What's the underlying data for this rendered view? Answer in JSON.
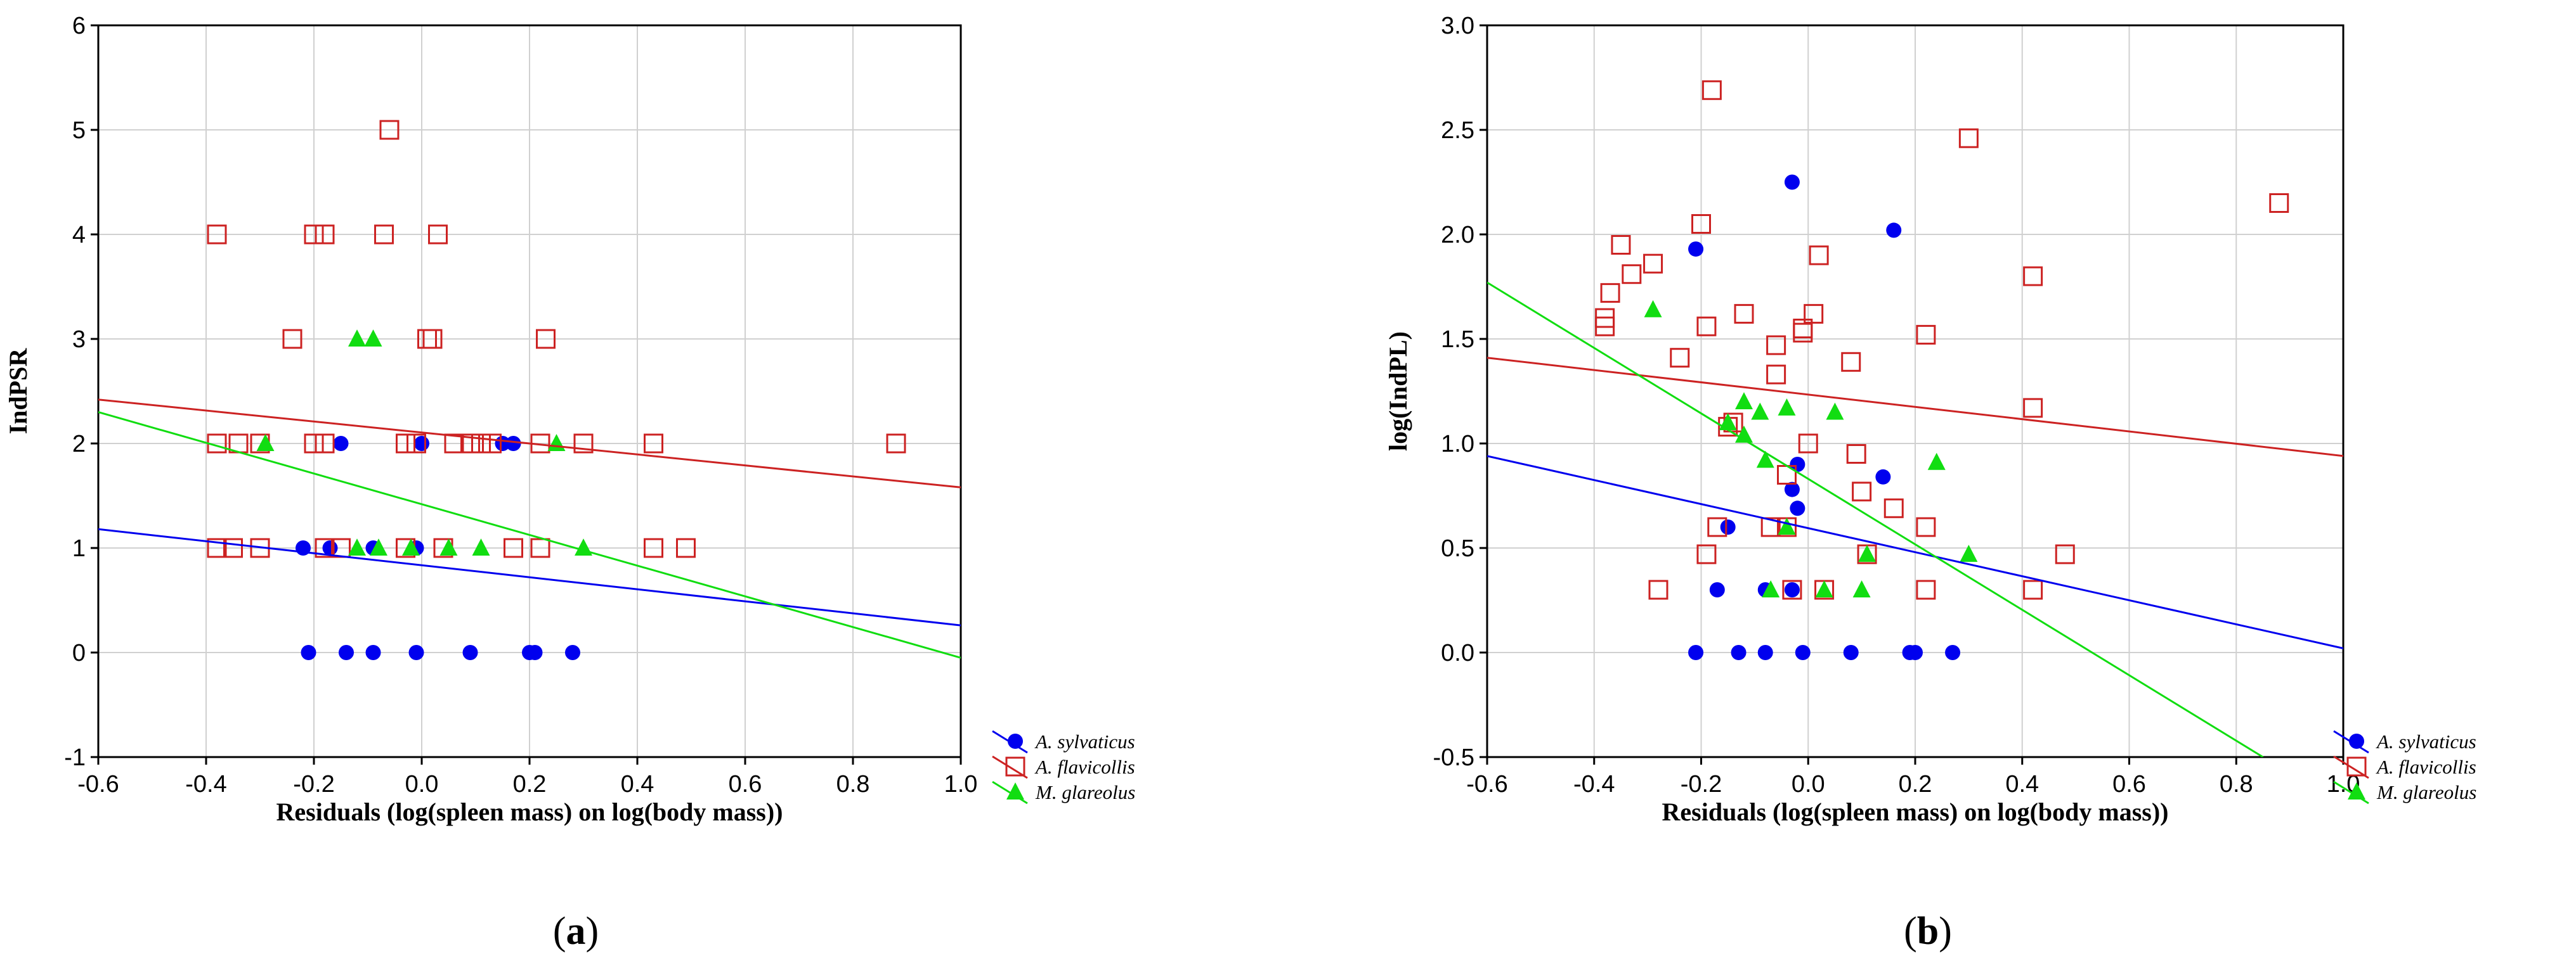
{
  "figure": {
    "panel_labels": [
      "a",
      "b"
    ]
  },
  "chart_data": [
    {
      "type": "scatter",
      "panel": "a",
      "xlabel": "Residuals (log(spleen mass) on log(body mass))",
      "ylabel": "IndPSR",
      "xlim": [
        -0.6,
        1.0
      ],
      "ylim": [
        -1,
        6
      ],
      "xticks": [
        "-0.6",
        "-0.4",
        "-0.2",
        "0.0",
        "0.2",
        "0.4",
        "0.6",
        "0.8",
        "1.0"
      ],
      "yticks": [
        "-1",
        "0",
        "1",
        "2",
        "3",
        "4",
        "5",
        "6"
      ],
      "grid": true,
      "legend_position": "bottom-right-outside",
      "series": [
        {
          "name": "A. sylvaticus",
          "marker": "filled-circle",
          "color": "#0000ee",
          "points": [
            [
              -0.21,
              0
            ],
            [
              -0.14,
              0
            ],
            [
              -0.09,
              0
            ],
            [
              -0.01,
              0
            ],
            [
              0.09,
              0
            ],
            [
              0.2,
              0
            ],
            [
              0.21,
              0
            ],
            [
              0.28,
              0
            ],
            [
              -0.22,
              1
            ],
            [
              -0.17,
              1
            ],
            [
              -0.09,
              1
            ],
            [
              -0.01,
              1
            ],
            [
              -0.15,
              2
            ],
            [
              0.0,
              2
            ],
            [
              0.15,
              2
            ],
            [
              0.17,
              2
            ]
          ],
          "fit": [
            [
              -0.6,
              1.18
            ],
            [
              1.0,
              0.26
            ]
          ]
        },
        {
          "name": "A. flavicollis",
          "marker": "open-square",
          "color": "#cc2222",
          "points": [
            [
              -0.38,
              1
            ],
            [
              -0.35,
              1
            ],
            [
              -0.3,
              1
            ],
            [
              -0.18,
              1
            ],
            [
              -0.15,
              1
            ],
            [
              -0.03,
              1
            ],
            [
              0.04,
              1
            ],
            [
              0.17,
              1
            ],
            [
              0.22,
              1
            ],
            [
              0.43,
              1
            ],
            [
              0.49,
              1
            ],
            [
              -0.38,
              2
            ],
            [
              -0.34,
              2
            ],
            [
              -0.3,
              2
            ],
            [
              -0.2,
              2
            ],
            [
              -0.18,
              2
            ],
            [
              -0.03,
              2
            ],
            [
              -0.01,
              2
            ],
            [
              0.06,
              2
            ],
            [
              0.09,
              2
            ],
            [
              0.11,
              2
            ],
            [
              0.13,
              2
            ],
            [
              0.22,
              2
            ],
            [
              0.3,
              2
            ],
            [
              0.43,
              2
            ],
            [
              0.88,
              2
            ],
            [
              -0.24,
              3
            ],
            [
              0.01,
              3
            ],
            [
              0.02,
              3
            ],
            [
              0.23,
              3
            ],
            [
              -0.38,
              4
            ],
            [
              -0.2,
              4
            ],
            [
              -0.18,
              4
            ],
            [
              -0.07,
              4
            ],
            [
              0.03,
              4
            ],
            [
              -0.06,
              5
            ]
          ],
          "fit": [
            [
              -0.6,
              2.42
            ],
            [
              1.0,
              1.58
            ]
          ]
        },
        {
          "name": "M. glareolus",
          "marker": "filled-triangle",
          "color": "#11dd11",
          "points": [
            [
              -0.12,
              3
            ],
            [
              -0.09,
              3
            ],
            [
              -0.29,
              2
            ],
            [
              0.25,
              2
            ],
            [
              -0.12,
              1
            ],
            [
              -0.08,
              1
            ],
            [
              -0.02,
              1
            ],
            [
              0.05,
              1
            ],
            [
              0.11,
              1
            ],
            [
              0.3,
              1
            ]
          ],
          "fit": [
            [
              -0.6,
              2.3
            ],
            [
              1.0,
              -0.05
            ]
          ]
        }
      ]
    },
    {
      "type": "scatter",
      "panel": "b",
      "xlabel": "Residuals (log(spleen mass) on log(body mass))",
      "ylabel": "log(IndPL)",
      "xlim": [
        -0.6,
        1.0
      ],
      "ylim": [
        -0.5,
        3.0
      ],
      "xticks": [
        "-0.6",
        "-0.4",
        "-0.2",
        "0.0",
        "0.2",
        "0.4",
        "0.6",
        "0.8",
        "1.0"
      ],
      "yticks": [
        "-0.5",
        "0.0",
        "0.5",
        "1.0",
        "1.5",
        "2.0",
        "2.5",
        "3.0"
      ],
      "grid": true,
      "legend_position": "bottom-right-outside",
      "series": [
        {
          "name": "A. sylvaticus",
          "marker": "filled-circle",
          "color": "#0000ee",
          "points": [
            [
              -0.21,
              1.93
            ],
            [
              -0.03,
              2.25
            ],
            [
              0.16,
              2.02
            ],
            [
              -0.02,
              0.9
            ],
            [
              0.14,
              0.84
            ],
            [
              -0.03,
              0.78
            ],
            [
              -0.02,
              0.69
            ],
            [
              -0.15,
              0.6
            ],
            [
              -0.17,
              0.3
            ],
            [
              -0.08,
              0.3
            ],
            [
              -0.03,
              0.3
            ],
            [
              -0.21,
              0
            ],
            [
              -0.13,
              0
            ],
            [
              -0.08,
              0
            ],
            [
              -0.01,
              0
            ],
            [
              0.08,
              0
            ],
            [
              0.19,
              0
            ],
            [
              0.2,
              0
            ],
            [
              0.27,
              0
            ]
          ],
          "fit": [
            [
              -0.6,
              0.94
            ],
            [
              1.0,
              0.02
            ]
          ]
        },
        {
          "name": "A. flavicollis",
          "marker": "open-square",
          "color": "#cc2222",
          "points": [
            [
              -0.18,
              2.69
            ],
            [
              0.3,
              2.46
            ],
            [
              0.88,
              2.15
            ],
            [
              -0.2,
              2.05
            ],
            [
              -0.35,
              1.95
            ],
            [
              -0.29,
              1.86
            ],
            [
              -0.33,
              1.81
            ],
            [
              0.42,
              1.8
            ],
            [
              -0.37,
              1.72
            ],
            [
              -0.12,
              1.62
            ],
            [
              0.01,
              1.62
            ],
            [
              -0.38,
              1.56
            ],
            [
              -0.38,
              1.6
            ],
            [
              -0.19,
              1.56
            ],
            [
              -0.01,
              1.55
            ],
            [
              -0.01,
              1.53
            ],
            [
              0.22,
              1.52
            ],
            [
              -0.06,
              1.47
            ],
            [
              -0.24,
              1.41
            ],
            [
              0.08,
              1.39
            ],
            [
              -0.06,
              1.33
            ],
            [
              0.42,
              1.17
            ],
            [
              -0.14,
              1.1
            ],
            [
              -0.15,
              1.08
            ],
            [
              0.0,
              1.0
            ],
            [
              0.09,
              0.95
            ],
            [
              -0.04,
              0.85
            ],
            [
              0.1,
              0.77
            ],
            [
              0.16,
              0.69
            ],
            [
              -0.17,
              0.6
            ],
            [
              -0.07,
              0.6
            ],
            [
              -0.04,
              0.6
            ],
            [
              0.22,
              0.6
            ],
            [
              0.11,
              0.47
            ],
            [
              0.48,
              0.47
            ],
            [
              -0.19,
              0.47
            ],
            [
              -0.28,
              0.3
            ],
            [
              -0.03,
              0.3
            ],
            [
              0.03,
              0.3
            ],
            [
              0.22,
              0.3
            ],
            [
              0.42,
              0.3
            ],
            [
              0.02,
              1.9
            ]
          ],
          "fit": [
            [
              -0.6,
              1.41
            ],
            [
              1.0,
              0.94
            ]
          ]
        },
        {
          "name": "M. glareolus",
          "marker": "filled-triangle",
          "color": "#11dd11",
          "points": [
            [
              -0.29,
              1.64
            ],
            [
              -0.12,
              1.2
            ],
            [
              -0.09,
              1.15
            ],
            [
              -0.04,
              1.17
            ],
            [
              0.05,
              1.15
            ],
            [
              -0.15,
              1.1
            ],
            [
              -0.12,
              1.04
            ],
            [
              -0.08,
              0.92
            ],
            [
              0.24,
              0.91
            ],
            [
              -0.04,
              0.6
            ],
            [
              0.11,
              0.47
            ],
            [
              0.3,
              0.47
            ],
            [
              -0.07,
              0.3
            ],
            [
              0.03,
              0.3
            ],
            [
              0.1,
              0.3
            ]
          ],
          "fit": [
            [
              -0.6,
              1.77
            ],
            [
              0.85,
              -0.5
            ]
          ]
        }
      ]
    }
  ]
}
